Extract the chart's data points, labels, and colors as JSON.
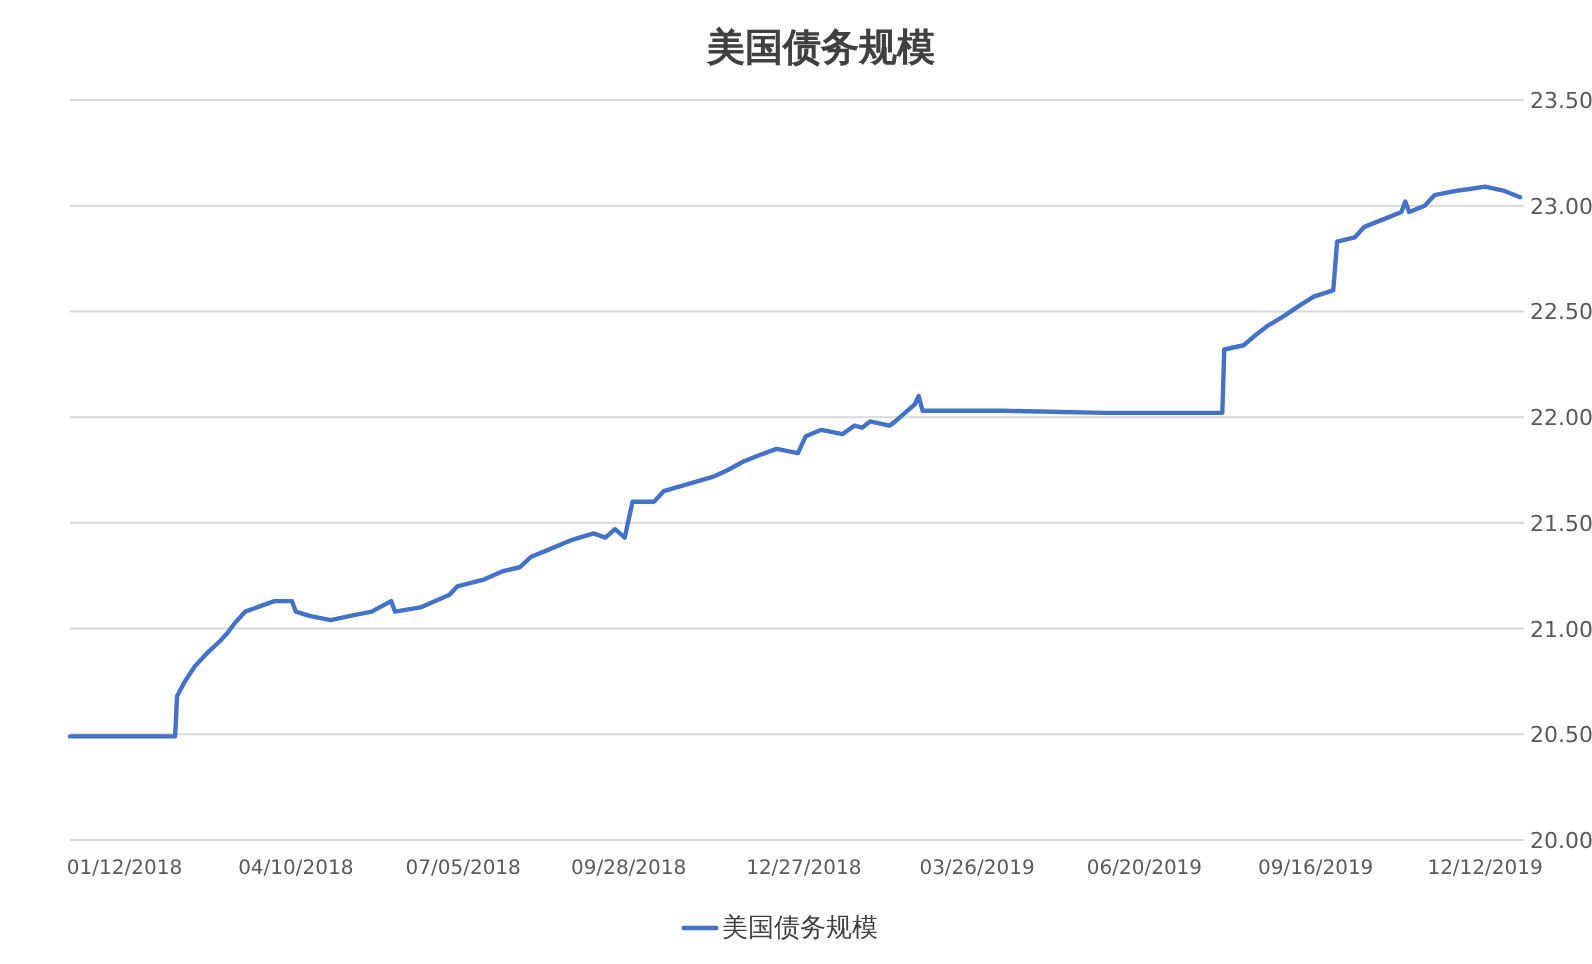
{
  "chart_data": {
    "type": "line",
    "title": "美国债务规模",
    "x": [
      "2017-12-15",
      "2018-02-07",
      "2018-02-08",
      "2018-02-12",
      "2018-02-17",
      "2018-02-23",
      "2018-03-02",
      "2018-03-06",
      "2018-03-10",
      "2018-03-15",
      "2018-03-21",
      "2018-03-30",
      "2018-04-08",
      "2018-04-10",
      "2018-04-17",
      "2018-04-28",
      "2018-05-08",
      "2018-05-19",
      "2018-05-29",
      "2018-05-31",
      "2018-06-13",
      "2018-06-28",
      "2018-07-02",
      "2018-07-15",
      "2018-07-25",
      "2018-08-03",
      "2018-08-09",
      "2018-08-17",
      "2018-08-30",
      "2018-09-10",
      "2018-09-16",
      "2018-09-21",
      "2018-09-26",
      "2018-09-30",
      "2018-10-11",
      "2018-10-16",
      "2018-10-31",
      "2018-11-11",
      "2018-11-18",
      "2018-11-26",
      "2018-12-04",
      "2018-12-13",
      "2018-12-24",
      "2018-12-28",
      "2019-01-05",
      "2019-01-16",
      "2019-01-22",
      "2019-01-26",
      "2019-01-30",
      "2019-02-09",
      "2019-02-12",
      "2019-02-22",
      "2019-02-24",
      "2019-02-26",
      "2019-04-09",
      "2019-05-30",
      "2019-07-30",
      "2019-07-31",
      "2019-08-10",
      "2019-08-15",
      "2019-08-22",
      "2019-08-31",
      "2019-09-08",
      "2019-09-15",
      "2019-09-25",
      "2019-09-27",
      "2019-10-06",
      "2019-10-11",
      "2019-10-22",
      "2019-10-30",
      "2019-11-01",
      "2019-11-03",
      "2019-11-11",
      "2019-11-16",
      "2019-11-27",
      "2019-12-05",
      "2019-12-12",
      "2019-12-22",
      "2019-12-30"
    ],
    "series": [
      {
        "name": "美国债务规模",
        "color": "#4472c4",
        "values": [
          20.49,
          20.49,
          20.68,
          20.75,
          20.82,
          20.88,
          20.94,
          20.98,
          21.03,
          21.08,
          21.1,
          21.13,
          21.13,
          21.08,
          21.06,
          21.04,
          21.06,
          21.08,
          21.13,
          21.08,
          21.1,
          21.16,
          21.2,
          21.23,
          21.27,
          21.29,
          21.34,
          21.37,
          21.42,
          21.45,
          21.43,
          21.47,
          21.43,
          21.6,
          21.6,
          21.65,
          21.69,
          21.72,
          21.75,
          21.79,
          21.82,
          21.85,
          21.83,
          21.91,
          21.94,
          21.92,
          21.96,
          21.95,
          21.98,
          21.96,
          21.98,
          22.06,
          22.1,
          22.03,
          22.03,
          22.02,
          22.02,
          22.32,
          22.34,
          22.38,
          22.43,
          22.48,
          22.53,
          22.57,
          22.6,
          22.83,
          22.85,
          22.9,
          22.94,
          22.97,
          23.02,
          22.97,
          23.0,
          23.05,
          23.07,
          23.08,
          23.09,
          23.07,
          23.04
        ]
      }
    ],
    "xlim": [
      "2017-12-15",
      "2020-01-01"
    ],
    "xticks": [
      {
        "value": "2018-01-12",
        "label": "01/12/2018"
      },
      {
        "value": "2018-04-10",
        "label": "04/10/2018"
      },
      {
        "value": "2018-07-05",
        "label": "07/05/2018"
      },
      {
        "value": "2018-09-28",
        "label": "09/28/2018"
      },
      {
        "value": "2018-12-27",
        "label": "12/27/2018"
      },
      {
        "value": "2019-03-26",
        "label": "03/26/2019"
      },
      {
        "value": "2019-06-20",
        "label": "06/20/2019"
      },
      {
        "value": "2019-09-16",
        "label": "09/16/2019"
      },
      {
        "value": "2019-12-12",
        "label": "12/12/2019"
      }
    ],
    "ylim": [
      20,
      23.5
    ],
    "yticks": [
      {
        "value": 20,
        "label": "20.00"
      },
      {
        "value": 20.5,
        "label": "20.50"
      },
      {
        "value": 21,
        "label": "21.00"
      },
      {
        "value": 21.5,
        "label": "21.50"
      },
      {
        "value": 22,
        "label": "22.00"
      },
      {
        "value": 22.5,
        "label": "22.50"
      },
      {
        "value": 23,
        "label": "23.00"
      },
      {
        "value": 23.5,
        "label": "23.50"
      }
    ],
    "grid": "y",
    "legend": "bottom",
    "marker": "none",
    "line_style": "solid"
  }
}
